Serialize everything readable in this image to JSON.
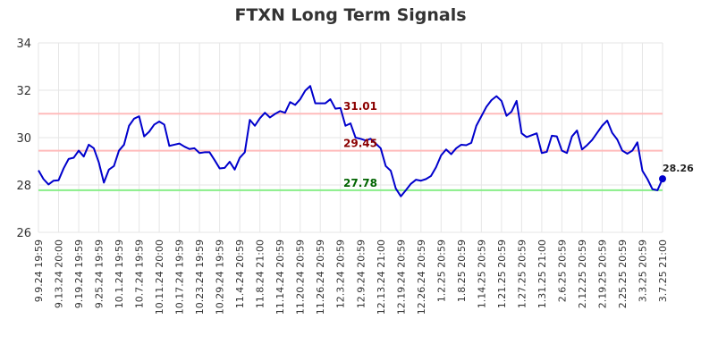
{
  "chart_data": {
    "type": "line",
    "title": "FTXN Long Term Signals",
    "xlabel": "",
    "ylabel": "",
    "ylim": [
      26,
      34
    ],
    "yticks": [
      26,
      28,
      30,
      32,
      34
    ],
    "grid": true,
    "x_tick_labels": [
      "9.9.24 19:59",
      "9.13.24 20:00",
      "9.19.24 19:59",
      "9.25.24 19:59",
      "10.1.24 19:59",
      "10.7.24 19:59",
      "10.11.24 20:00",
      "10.17.24 19:59",
      "10.23.24 19:59",
      "10.29.24 19:59",
      "11.4.24 20:59",
      "11.8.24 21:00",
      "11.14.24 20:59",
      "11.20.24 20:59",
      "11.26.24 20:59",
      "12.3.24 20:59",
      "12.9.24 20:59",
      "12.13.24 21:00",
      "12.19.24 20:59",
      "12.26.24 20:59",
      "1.2.25 20:59",
      "1.8.25 20:59",
      "1.14.25 20:59",
      "1.21.25 20:59",
      "1.27.25 20:59",
      "1.31.25 21:00",
      "2.6.25 20:59",
      "2.12.25 20:59",
      "2.19.25 20:59",
      "2.25.25 20:59",
      "3.3.25 20:59",
      "3.7.25 21:00"
    ],
    "series": [
      {
        "color": "#0000cc",
        "values": [
          28.62,
          28.25,
          28.02,
          28.18,
          28.2,
          28.7,
          29.1,
          29.15,
          29.45,
          29.2,
          29.7,
          29.55,
          28.95,
          28.1,
          28.65,
          28.8,
          29.45,
          29.7,
          30.5,
          30.8,
          30.9,
          30.05,
          30.25,
          30.55,
          30.68,
          30.55,
          29.65,
          29.7,
          29.75,
          29.62,
          29.52,
          29.55,
          29.35,
          29.38,
          29.38,
          29.05,
          28.7,
          28.72,
          28.98,
          28.65,
          29.15,
          29.38,
          30.75,
          30.5,
          30.82,
          31.05,
          30.85,
          31.0,
          31.12,
          31.05,
          31.5,
          31.38,
          31.62,
          31.98,
          32.18,
          31.45,
          31.45,
          31.45,
          31.62,
          31.22,
          31.25,
          30.5,
          30.6,
          30.0,
          29.95,
          29.88,
          29.95,
          29.75,
          29.55,
          28.8,
          28.6,
          27.85,
          27.52,
          27.78,
          28.05,
          28.22,
          28.18,
          28.25,
          28.38,
          28.75,
          29.25,
          29.5,
          29.3,
          29.55,
          29.7,
          29.68,
          29.78,
          30.5,
          30.9,
          31.3,
          31.58,
          31.75,
          31.55,
          30.92,
          31.1,
          31.55,
          30.18,
          30.02,
          30.1,
          30.18,
          29.35,
          29.4,
          30.08,
          30.05,
          29.45,
          29.35,
          30.05,
          30.3,
          29.5,
          29.68,
          29.9,
          30.2,
          30.5,
          30.72,
          30.2,
          29.92,
          29.45,
          29.32,
          29.45,
          29.8,
          28.6,
          28.25,
          27.82,
          27.78,
          28.26
        ]
      }
    ],
    "reference_lines": [
      {
        "value": 31.01,
        "label": "31.01",
        "line_color": "#ffbbbb",
        "label_color": "#8b0000"
      },
      {
        "value": 29.45,
        "label": "29.45",
        "line_color": "#ffbbbb",
        "label_color": "#8b0000"
      },
      {
        "value": 27.78,
        "label": "27.78",
        "line_color": "#88ee88",
        "label_color": "#006400"
      }
    ],
    "last_value_label": "28.26"
  }
}
